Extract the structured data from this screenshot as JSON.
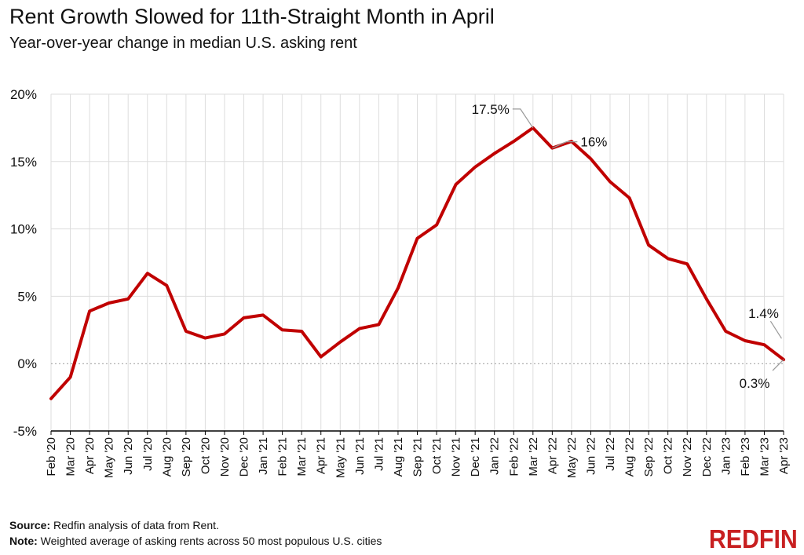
{
  "chart_data": {
    "type": "line",
    "title": "Rent Growth Slowed for 11th-Straight Month in April",
    "subtitle": "Year-over-year change in median U.S. asking rent",
    "x": [
      "Feb '20",
      "Mar '20",
      "Apr '20",
      "May '20",
      "Jun '20",
      "Jul '20",
      "Aug '20",
      "Sep '20",
      "Oct '20",
      "Nov '20",
      "Dec '20",
      "Jan '21",
      "Feb '21",
      "Mar '21",
      "Apr '21",
      "May '21",
      "Jun '21",
      "Jul '21",
      "Aug '21",
      "Sep '21",
      "Oct '21",
      "Nov '21",
      "Dec '21",
      "Jan '22",
      "Feb '22",
      "Mar '22",
      "Apr '22",
      "May '22",
      "Jun '22",
      "Jul '22",
      "Aug '22",
      "Sep '22",
      "Oct '22",
      "Nov '22",
      "Dec '22",
      "Jan '23",
      "Feb '23",
      "Mar '23",
      "Apr '23"
    ],
    "series": [
      {
        "values": [
          -2.6,
          -1.0,
          3.9,
          4.5,
          4.8,
          6.7,
          5.8,
          2.4,
          1.9,
          2.2,
          3.4,
          3.6,
          2.5,
          2.4,
          0.5,
          1.6,
          2.6,
          2.9,
          5.6,
          9.3,
          10.3,
          13.3,
          14.6,
          15.6,
          16.5,
          17.5,
          16.0,
          16.5,
          15.2,
          13.5,
          12.3,
          8.8,
          7.8,
          7.4,
          4.8,
          2.4,
          1.7,
          1.4,
          0.3
        ],
        "color": "#c00000"
      }
    ],
    "yticks": [
      "-5%",
      "0%",
      "5%",
      "10%",
      "15%",
      "20%"
    ],
    "ylim": [
      -5,
      20
    ],
    "grid": true,
    "annotations": [
      {
        "label": "17.5%",
        "index": 25
      },
      {
        "label": "16%",
        "index": 26
      },
      {
        "label": "1.4%",
        "index": 37
      },
      {
        "label": "0.3%",
        "index": 38
      }
    ]
  },
  "footer": {
    "source_label": "Source:",
    "source_text": " Redfin analysis of data from Rent.",
    "note_label": "Note:",
    "note_text": " Weighted average of asking rents across 50 most populous U.S. cities"
  },
  "brand": {
    "logo_text": "REDFIN",
    "color": "#c82021"
  }
}
